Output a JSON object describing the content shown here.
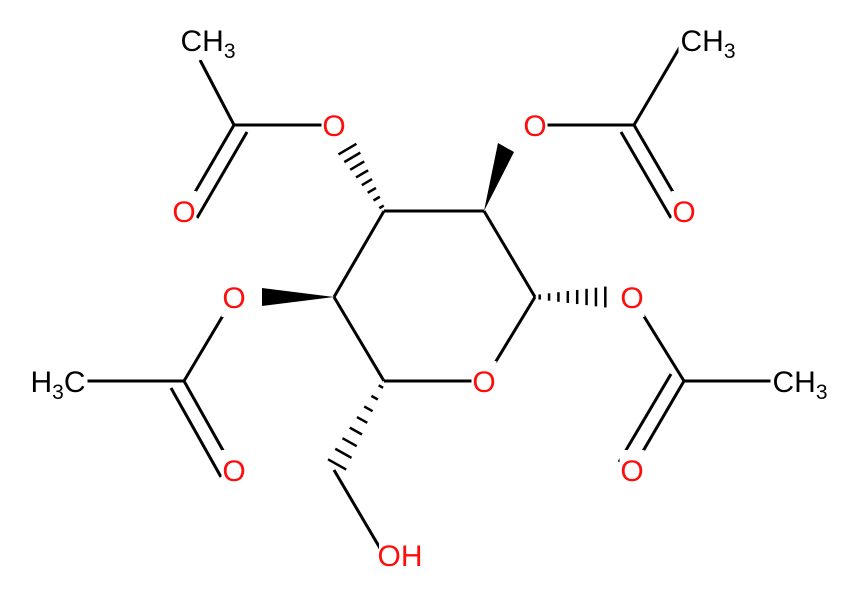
{
  "atoms": [
    {
      "label": "O"
    },
    {
      "label": "O"
    },
    {
      "label": "O"
    },
    {
      "label": "CH3"
    },
    {
      "label": "O"
    },
    {
      "label": "CH3"
    },
    {
      "label": "O"
    },
    {
      "label": "O"
    },
    {
      "label": "CH3"
    },
    {
      "label": "O"
    },
    {
      "label": "O"
    },
    {
      "label": "H3C"
    },
    {
      "label": "O"
    },
    {
      "label": "OH"
    }
  ]
}
